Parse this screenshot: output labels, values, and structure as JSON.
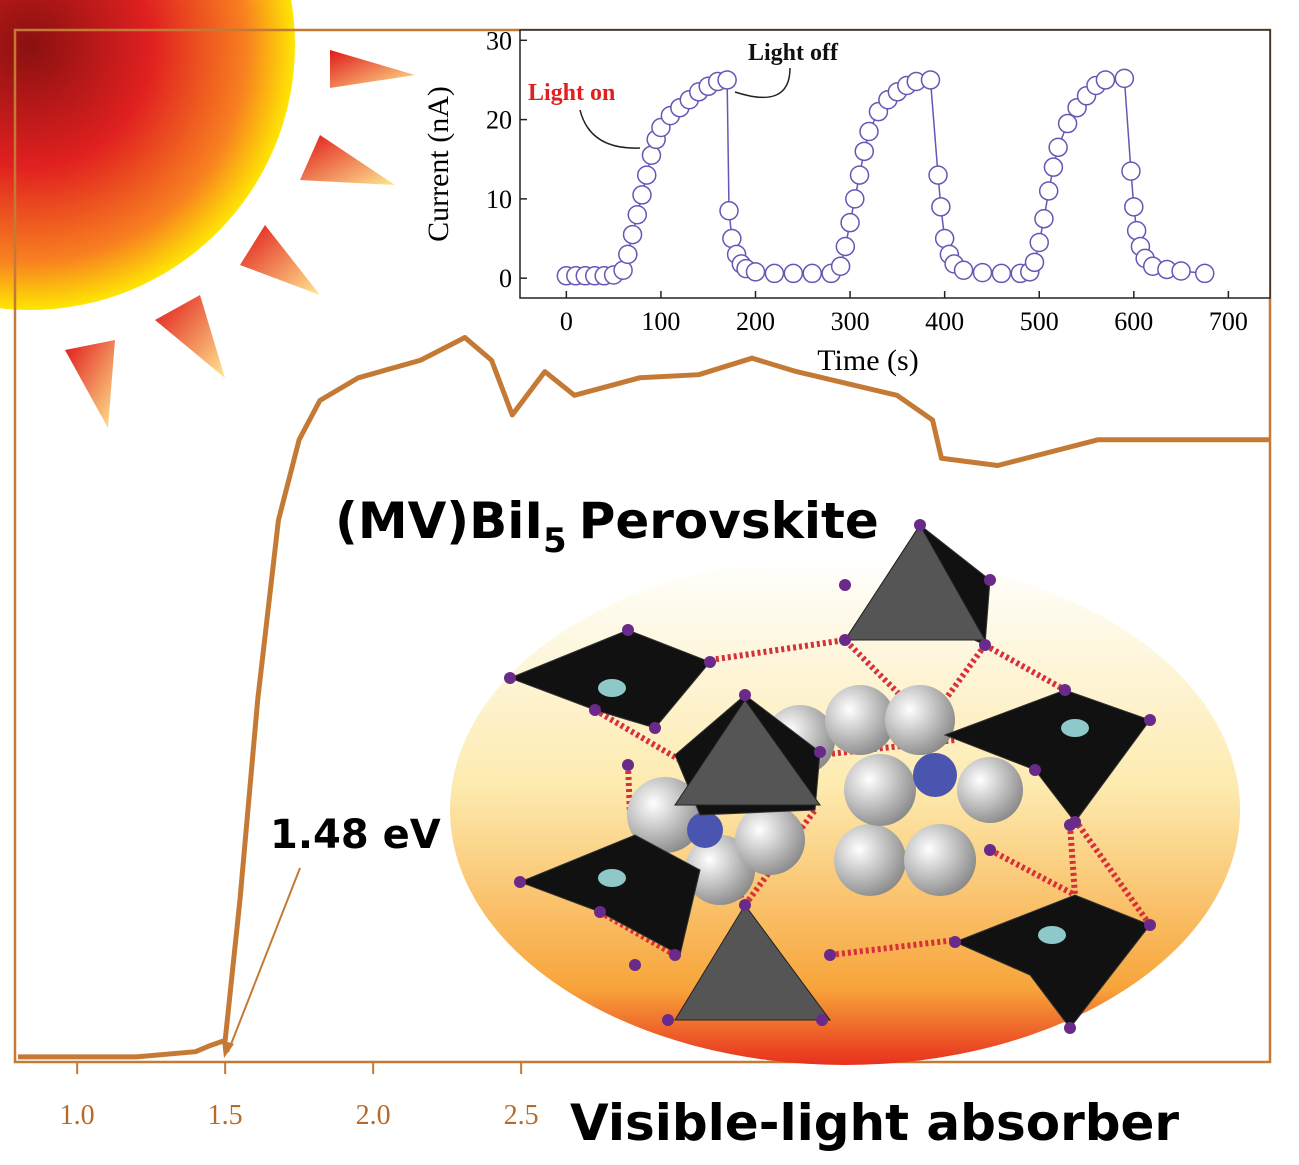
{
  "chart_data": [
    {
      "type": "line",
      "color": "#c47a35",
      "x": [
        0.8,
        1.2,
        1.4,
        1.45,
        1.5,
        1.55,
        1.61,
        1.68,
        1.75,
        1.82,
        1.95,
        2.16,
        2.31,
        2.4,
        2.47,
        2.58,
        2.68,
        2.9,
        3.1,
        3.28,
        3.43,
        3.77,
        3.89,
        3.92,
        4.11,
        4.45,
        5.03
      ],
      "values": [
        0.005,
        0.005,
        0.01,
        0.016,
        0.021,
        0.157,
        0.351,
        0.525,
        0.603,
        0.641,
        0.663,
        0.68,
        0.702,
        0.68,
        0.627,
        0.669,
        0.646,
        0.663,
        0.666,
        0.682,
        0.669,
        0.646,
        0.622,
        0.585,
        0.578,
        0.603,
        0.603
      ],
      "xlim": [
        0.79,
        5.03
      ],
      "ylim": [
        0,
        1
      ],
      "xticks": [
        {
          "value": 1,
          "label": "1.0"
        },
        {
          "value": 1.5,
          "label": "1.5"
        },
        {
          "value": 2,
          "label": "2.0"
        },
        {
          "value": 2.5,
          "label": "2.5"
        }
      ],
      "annotations": [
        "1.48 eV",
        "Visible-light absorber"
      ],
      "compound": {
        "formula": "(MV)BiI",
        "subscript": "5",
        "name": "Perovskite"
      }
    },
    {
      "type": "scatter",
      "color": "#6a55b5",
      "x_label": "Time (s)",
      "y_label": "Current (nA)",
      "x": [
        0,
        10,
        20,
        30,
        40,
        50,
        60,
        65,
        70,
        75,
        80,
        85,
        90,
        95,
        100,
        110,
        120,
        130,
        140,
        150,
        160,
        170,
        172,
        175,
        180,
        185,
        190,
        200,
        220,
        240,
        260,
        280,
        290,
        295,
        300,
        305,
        310,
        315,
        320,
        330,
        340,
        350,
        360,
        370,
        385,
        393,
        396,
        400,
        405,
        410,
        420,
        440,
        460,
        480,
        490,
        495,
        500,
        505,
        510,
        515,
        520,
        530,
        540,
        550,
        560,
        570,
        590,
        597,
        600,
        603,
        607,
        612,
        620,
        635,
        650,
        675
      ],
      "values": [
        0.3,
        0.3,
        0.3,
        0.3,
        0.3,
        0.4,
        1,
        3,
        5.5,
        8,
        10.5,
        13,
        15.5,
        17.5,
        19,
        20.5,
        21.5,
        22.5,
        23.5,
        24.2,
        24.8,
        25,
        8.5,
        5,
        3,
        1.8,
        1.2,
        0.8,
        0.6,
        0.6,
        0.6,
        0.6,
        1.5,
        4,
        7,
        10,
        13,
        16,
        18.5,
        21,
        22.5,
        23.5,
        24.3,
        24.8,
        25,
        13,
        9,
        5,
        3,
        1.8,
        1,
        0.7,
        0.6,
        0.6,
        0.8,
        2,
        4.5,
        7.5,
        11,
        14,
        16.5,
        19.5,
        21.5,
        23,
        24.3,
        25,
        25.2,
        13.5,
        9,
        6,
        4,
        2.5,
        1.5,
        1.1,
        0.9,
        0.6
      ],
      "xlim": [
        -49,
        744
      ],
      "ylim": [
        -2.5,
        31.3
      ],
      "xticks": [
        0,
        100,
        200,
        300,
        400,
        500,
        600,
        700
      ],
      "yticks": [
        0,
        10,
        20,
        30
      ],
      "annotations": [
        "Light on",
        "Light off"
      ]
    }
  ]
}
